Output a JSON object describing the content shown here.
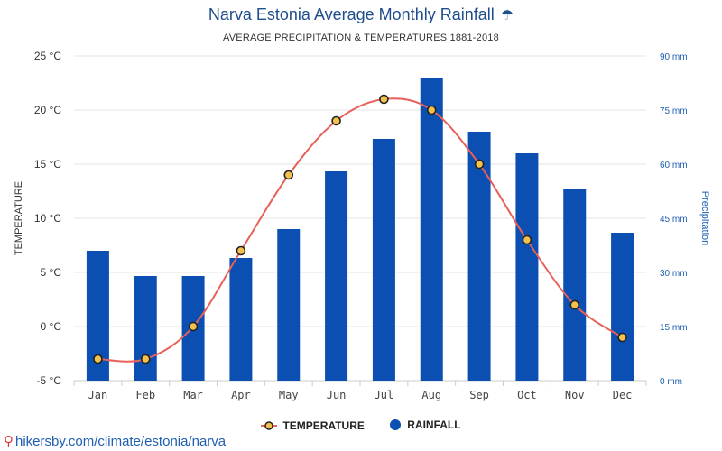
{
  "header": {
    "title": "Narva Estonia Average Monthly Rainfall",
    "title_icon": "umbrella-icon",
    "subtitle": "AVERAGE PRECIPITATION & TEMPERATURES 1881-2018"
  },
  "legend": {
    "temperature": "TEMPERATURE",
    "rainfall": "RAINFALL"
  },
  "footer": {
    "url": "hikersby.com/climate/estonia/narva",
    "icon": "map-pin-icon"
  },
  "colors": {
    "bar": "#0a4fb1",
    "line": "#e8605a",
    "marker_fill": "#f2c14e",
    "marker_stroke": "#222222",
    "title": "#1f4e8c",
    "right_axis": "#1f5fb0"
  },
  "chart_data": {
    "type": "bar+line",
    "categories": [
      "Jan",
      "Feb",
      "Mar",
      "Apr",
      "May",
      "Jun",
      "Jul",
      "Aug",
      "Sep",
      "Oct",
      "Nov",
      "Dec"
    ],
    "series": [
      {
        "name": "TEMPERATURE",
        "type": "line",
        "axis": "left",
        "values": [
          -3,
          -3,
          0,
          7,
          14,
          19,
          21,
          20,
          15,
          8,
          2,
          -1
        ]
      },
      {
        "name": "RAINFALL",
        "type": "bar",
        "axis": "right",
        "values": [
          36,
          29,
          29,
          34,
          42,
          58,
          67,
          84,
          69,
          63,
          53,
          41
        ]
      }
    ],
    "ylabel_left": "TEMPERATURE",
    "ylabel_right": "Precipitation",
    "ylim_left": [
      -5,
      25
    ],
    "ylim_right": [
      0,
      90
    ],
    "yticks_left": [
      "-5 °C",
      "0 °C",
      "5 °C",
      "10 °C",
      "15 °C",
      "20 °C",
      "25 °C"
    ],
    "yticks_right": [
      "0 mm",
      "15 mm",
      "30 mm",
      "45 mm",
      "60 mm",
      "75 mm",
      "90 mm"
    ],
    "grid": true,
    "legend_position": "bottom-center"
  }
}
